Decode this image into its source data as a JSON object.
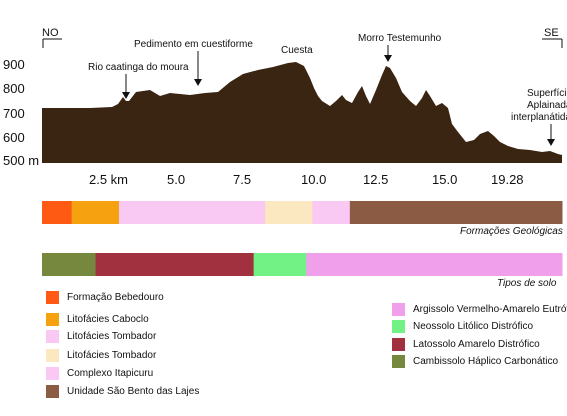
{
  "orientation": {
    "left": "NO",
    "right": "SE"
  },
  "elevation_axis": {
    "ticks": [
      "900",
      "800",
      "700",
      "600",
      "500 m"
    ]
  },
  "distance_axis": {
    "ticks": [
      "2.5 km",
      "5.0",
      "7.5",
      "10.0",
      "12.5",
      "15.0",
      "19.28"
    ]
  },
  "annotations": {
    "rio": "Rio caatinga do moura",
    "pedimento": "Pedimento em cuestiforme",
    "cuesta": "Cuesta",
    "morro": "Morro Testemunho",
    "superficie_1": "Superfície",
    "superficie_2": "Aplainada",
    "superficie_3": "interplanátida"
  },
  "colors": {
    "profile": "#3a2412",
    "bebedouro": "#ff5a14",
    "caboclo": "#f6a10f",
    "tombador_pink": "#f9c9f3",
    "tombador_cream": "#fbe7c0",
    "itapicuru": "#f9c9f3",
    "sao_bento": "#8b5b43",
    "argissolo": "#f0a0ea",
    "neossolo": "#72f284",
    "latossolo": "#a2313f",
    "cambissolo": "#76873e"
  },
  "geology_bar": {
    "caption": "Formações Geológicas",
    "segments": [
      {
        "key": "bebedouro",
        "fraction": 0.057
      },
      {
        "key": "caboclo",
        "fraction": 0.091
      },
      {
        "key": "tombador_pink",
        "fraction": 0.281
      },
      {
        "key": "tombador_cream",
        "fraction": 0.091
      },
      {
        "key": "itapicuru",
        "fraction": 0.072
      },
      {
        "key": "sao_bento",
        "fraction": 0.408
      }
    ]
  },
  "soil_bar": {
    "caption": "Tipos de solo",
    "segments": [
      {
        "key": "cambissolo",
        "fraction": 0.103
      },
      {
        "key": "latossolo",
        "fraction": 0.304
      },
      {
        "key": "neossolo",
        "fraction": 0.101
      },
      {
        "key": "argissolo",
        "fraction": 0.492
      }
    ]
  },
  "legend_left": [
    {
      "label": "Formação Bebedouro",
      "color": "#ff5a14"
    },
    {
      "label": "Litofácies Caboclo",
      "color": "#f6a10f"
    },
    {
      "label": "Litofácies Tombador",
      "color": "#f9c9f3"
    },
    {
      "label": "Litofácies Tombador",
      "color": "#fbe7c0"
    },
    {
      "label": "Complexo Itapicuru",
      "color": "#f9c9f3"
    },
    {
      "label": "Unidade São Bento das Lajes",
      "color": "#8b5b43"
    }
  ],
  "legend_right": [
    {
      "label": "Argissolo Vermelho-Amarelo Eutrófico",
      "color": "#f0a0ea"
    },
    {
      "label": "Neossolo Litólico Distrófico",
      "color": "#72f284"
    },
    {
      "label": "Latossolo Amarelo Distrófico",
      "color": "#a2313f"
    },
    {
      "label": "Cambissolo Háplico Carbonático",
      "color": "#76873e"
    }
  ]
}
